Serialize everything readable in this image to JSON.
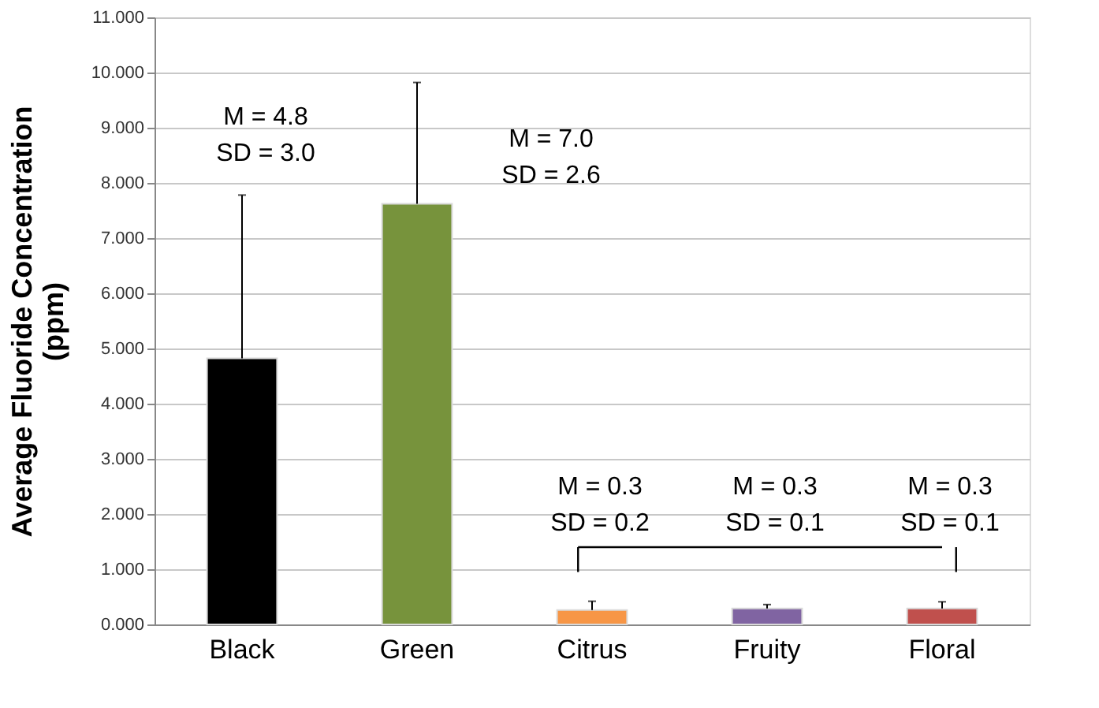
{
  "chart_data": {
    "type": "bar",
    "ylabel": "Average Fluoride Concentration\n(ppm)",
    "categories": [
      "Black",
      "Green",
      "Citrus",
      "Fruity",
      "Floral"
    ],
    "values": [
      4.82,
      7.62,
      0.26,
      0.29,
      0.29
    ],
    "colors": [
      "#000000",
      "#77933c",
      "#f79646",
      "#8064a2",
      "#c0504d"
    ],
    "errors": [
      [
        4.82,
        7.78
      ],
      [
        7.62,
        9.82
      ],
      [
        0.26,
        0.42
      ],
      [
        0.29,
        0.36
      ],
      [
        0.29,
        0.41
      ]
    ],
    "ylim": [
      0,
      11
    ],
    "yticks": [
      {
        "value": 0,
        "label": "0.000"
      },
      {
        "value": 1,
        "label": "1.000"
      },
      {
        "value": 2,
        "label": "2.000"
      },
      {
        "value": 3,
        "label": "3.000"
      },
      {
        "value": 4,
        "label": "4.000"
      },
      {
        "value": 5,
        "label": "5.000"
      },
      {
        "value": 6,
        "label": "6.000"
      },
      {
        "value": 7,
        "label": "7.000"
      },
      {
        "value": 8,
        "label": "8.000"
      },
      {
        "value": 9,
        "label": "9.000"
      },
      {
        "value": 10,
        "label": "10.000"
      },
      {
        "value": 11,
        "label": "11.000"
      }
    ],
    "grid": "y",
    "annotations": [
      "M =  4.8\nSD = 3.0",
      "M = 7.0\nSD = 2.6",
      "M = 0.3\nSD = 0.2",
      "M = 0.3\nSD = 0.1",
      "M = 0.3\nSD = 0.1"
    ]
  }
}
